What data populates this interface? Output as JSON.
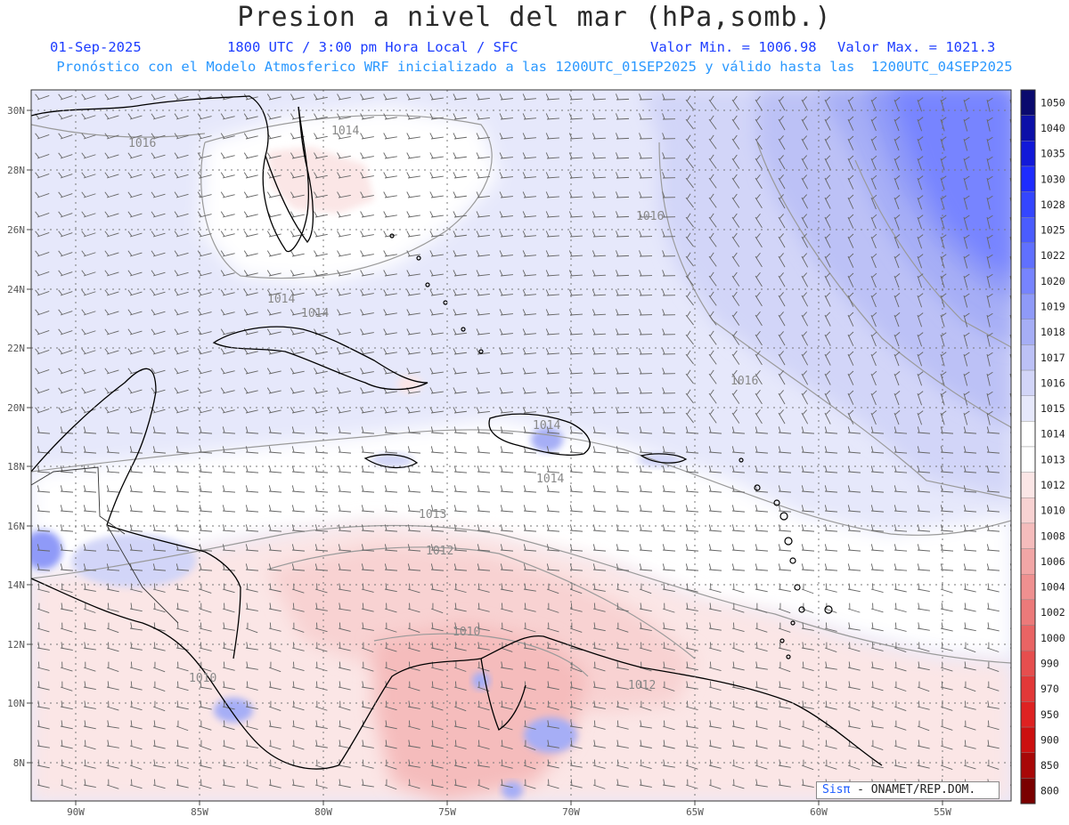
{
  "header": {
    "title": "Presion a nivel del mar (hPa,somb.)",
    "date": "01-Sep-2025",
    "time": "1800 UTC / 3:00 pm Hora Local / SFC",
    "min_label": "Valor Min. = 1006.98",
    "max_label": "Valor Max. = 1021.3",
    "model_line": "Pronóstico con el Modelo Atmosferico WRF inicializado a las 1200UTC_01SEP2025 y válido hasta las  1200UTC_04SEP2025"
  },
  "axes": {
    "lat_labels": [
      "30N",
      "28N",
      "26N",
      "24N",
      "22N",
      "20N",
      "18N",
      "16N",
      "14N",
      "12N",
      "10N",
      "8N"
    ],
    "lon_labels": [
      "90W",
      "85W",
      "80W",
      "75W",
      "70W",
      "65W",
      "60W",
      "55W"
    ]
  },
  "contour_labels": [
    "1016",
    "1014",
    "1014",
    "1014",
    "1016",
    "1016",
    "1014",
    "1014",
    "1013",
    "1012",
    "1010",
    "1012",
    "1010"
  ],
  "colorbar": {
    "levels": [
      "1050",
      "1040",
      "1035",
      "1030",
      "1028",
      "1025",
      "1022",
      "1020",
      "1019",
      "1018",
      "1017",
      "1016",
      "1015",
      "1014",
      "1013",
      "1012",
      "1010",
      "1008",
      "1006",
      "1004",
      "1002",
      "1000",
      "990",
      "970",
      "950",
      "900",
      "850",
      "800"
    ],
    "colors": [
      "#0a0a6e",
      "#0c10a8",
      "#1219d8",
      "#1e2cff",
      "#3446ff",
      "#4a5cff",
      "#6070ff",
      "#7784ff",
      "#8f9af8",
      "#a6aef6",
      "#bcc1f6",
      "#d2d5f8",
      "#e6e8fb",
      "#ffffff",
      "#ffffff",
      "#fbe6e6",
      "#f8d2d2",
      "#f5bcbc",
      "#f2a6a6",
      "#ef9090",
      "#ec7a7a",
      "#e96464",
      "#e64e4e",
      "#e23838",
      "#de2222",
      "#cc1010",
      "#a80808",
      "#7a0000"
    ]
  },
  "credit": {
    "brand": "Sisπ",
    "text": " - ONAMET/REP.DOM."
  }
}
